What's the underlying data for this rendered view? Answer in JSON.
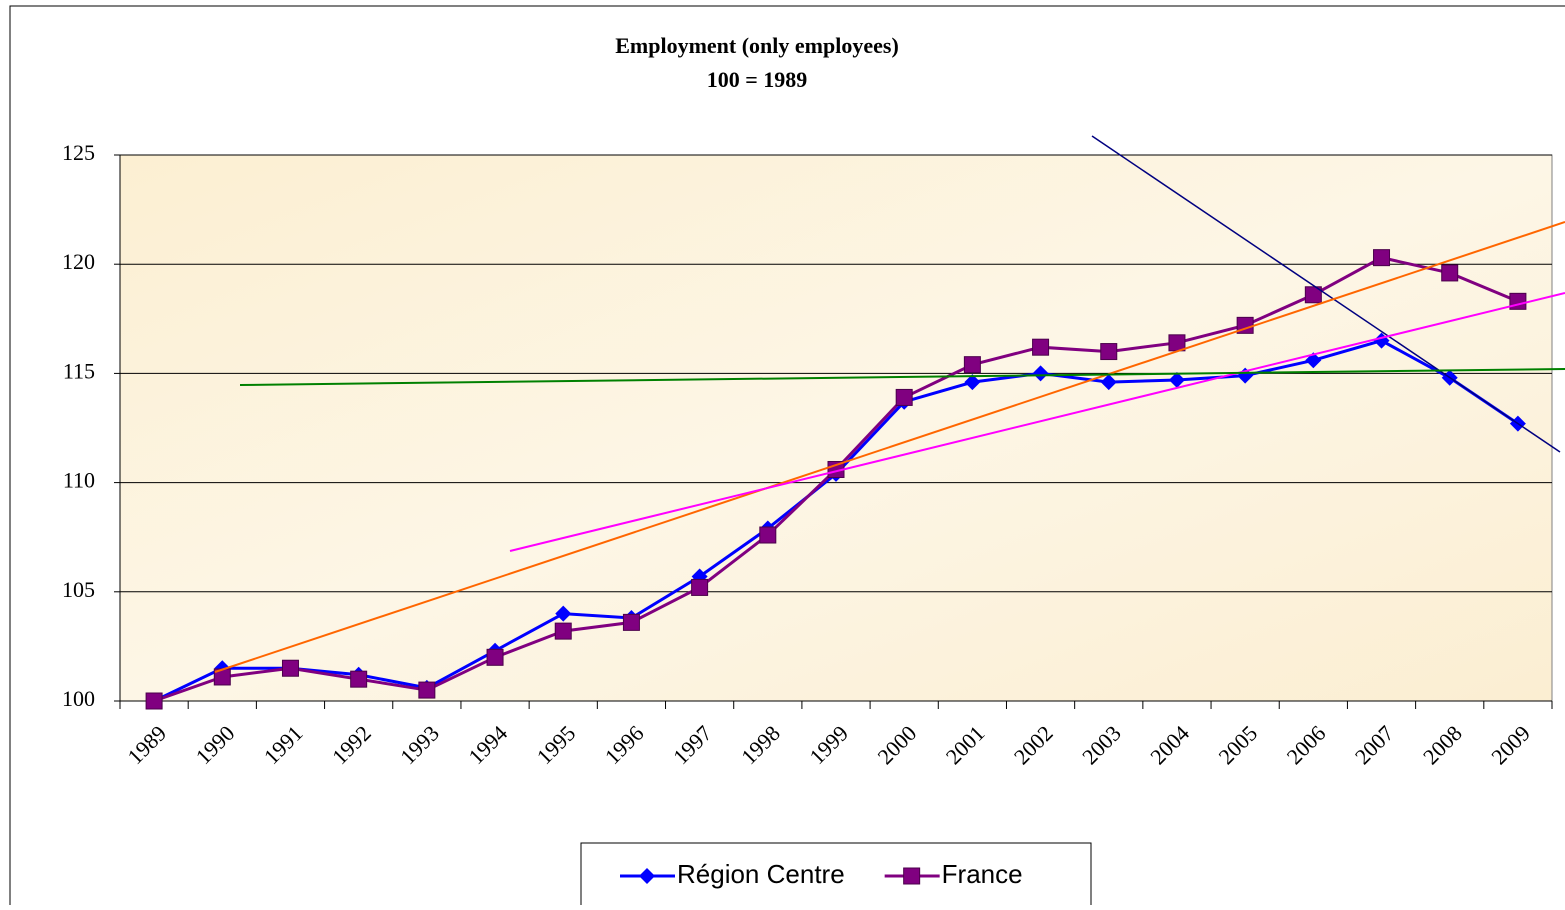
{
  "chart_data": {
    "type": "line",
    "title": "Employment (only employees)",
    "subtitle": "100 = 1989",
    "categories": [
      "1989",
      "1990",
      "1991",
      "1992",
      "1993",
      "1994",
      "1995",
      "1996",
      "1997",
      "1998",
      "1999",
      "2000",
      "2001",
      "2002",
      "2003",
      "2004",
      "2005",
      "2006",
      "2007",
      "2008",
      "2009"
    ],
    "series": [
      {
        "name": "Région Centre",
        "color": "#0000ff",
        "marker": "diamond",
        "values": [
          100,
          101.5,
          101.5,
          101.2,
          100.6,
          102.3,
          104.0,
          103.8,
          105.7,
          107.9,
          110.4,
          113.7,
          114.6,
          115.0,
          114.6,
          114.7,
          114.9,
          115.6,
          116.5,
          114.8,
          112.7
        ]
      },
      {
        "name": "France",
        "color": "#800080",
        "marker": "square",
        "values": [
          100,
          101.1,
          101.5,
          101.0,
          100.5,
          102.0,
          103.2,
          103.6,
          105.2,
          107.6,
          110.6,
          113.9,
          115.4,
          116.2,
          116.0,
          116.4,
          117.2,
          118.6,
          120.3,
          119.6,
          118.3
        ]
      }
    ],
    "ylim": [
      100,
      125
    ],
    "yticks": [
      100,
      105,
      110,
      115,
      120,
      125
    ],
    "grid": true,
    "legend": "bottom"
  }
}
